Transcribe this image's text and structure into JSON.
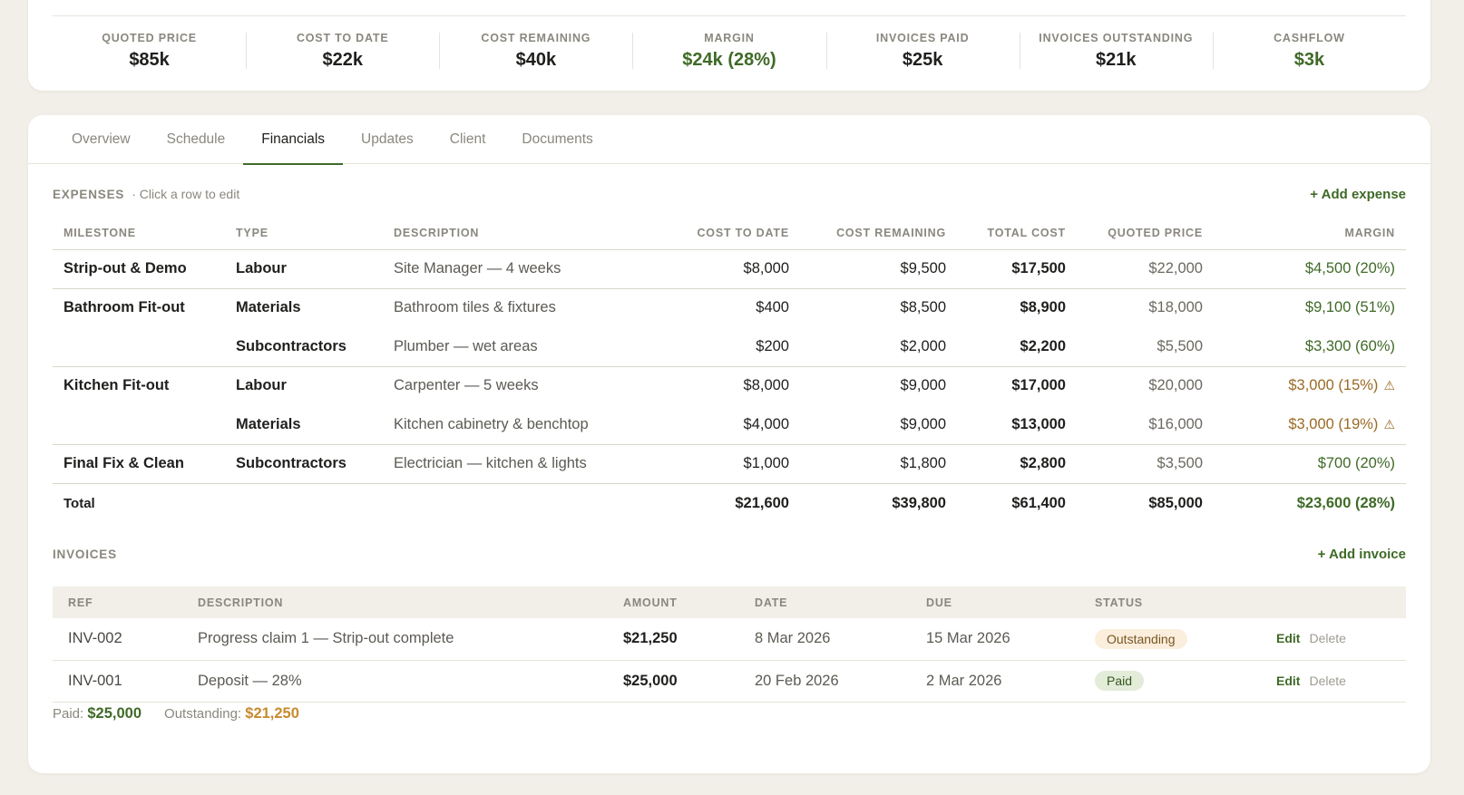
{
  "stats": [
    {
      "label": "QUOTED PRICE",
      "value": "$85k",
      "tone": "default"
    },
    {
      "label": "COST TO DATE",
      "value": "$22k",
      "tone": "default"
    },
    {
      "label": "COST REMAINING",
      "value": "$40k",
      "tone": "default"
    },
    {
      "label": "MARGIN",
      "value": "$24k (28%)",
      "tone": "green"
    },
    {
      "label": "INVOICES PAID",
      "value": "$25k",
      "tone": "default"
    },
    {
      "label": "INVOICES OUTSTANDING",
      "value": "$21k",
      "tone": "default"
    },
    {
      "label": "CASHFLOW",
      "value": "$3k",
      "tone": "green"
    }
  ],
  "tabs": [
    {
      "label": "Overview"
    },
    {
      "label": "Schedule"
    },
    {
      "label": "Financials",
      "active": true
    },
    {
      "label": "Updates"
    },
    {
      "label": "Client"
    },
    {
      "label": "Documents"
    }
  ],
  "expenses": {
    "title": "EXPENSES",
    "hint": "· Click a row to edit",
    "add_label": "+ Add expense",
    "columns": {
      "milestone": "MILESTONE",
      "type": "TYPE",
      "description": "DESCRIPTION",
      "cost_to_date": "COST TO DATE",
      "cost_remaining": "COST REMAINING",
      "total_cost": "TOTAL COST",
      "quoted_price": "QUOTED PRICE",
      "margin": "MARGIN"
    },
    "rows": [
      {
        "milestone": "Strip-out & Demo",
        "type": "Labour",
        "description": "Site Manager — 4 weeks",
        "cost_to_date": "$8,000",
        "cost_remaining": "$9,500",
        "total_cost": "$17,500",
        "quoted_price": "$22,000",
        "margin": "$4,500 (20%)",
        "warning": false
      },
      {
        "milestone": "Bathroom Fit-out",
        "type": "Materials",
        "description": "Bathroom tiles & fixtures",
        "cost_to_date": "$400",
        "cost_remaining": "$8,500",
        "total_cost": "$8,900",
        "quoted_price": "$18,000",
        "margin": "$9,100 (51%)",
        "warning": false
      },
      {
        "milestone": "",
        "type": "Subcontractors",
        "description": "Plumber — wet areas",
        "cost_to_date": "$200",
        "cost_remaining": "$2,000",
        "total_cost": "$2,200",
        "quoted_price": "$5,500",
        "margin": "$3,300 (60%)",
        "warning": false
      },
      {
        "milestone": "Kitchen Fit-out",
        "type": "Labour",
        "description": "Carpenter — 5 weeks",
        "cost_to_date": "$8,000",
        "cost_remaining": "$9,000",
        "total_cost": "$17,000",
        "quoted_price": "$20,000",
        "margin": "$3,000 (15%)",
        "warning": true
      },
      {
        "milestone": "",
        "type": "Materials",
        "description": "Kitchen cabinetry & benchtop",
        "cost_to_date": "$4,000",
        "cost_remaining": "$9,000",
        "total_cost": "$13,000",
        "quoted_price": "$16,000",
        "margin": "$3,000 (19%)",
        "warning": true
      },
      {
        "milestone": "Final Fix & Clean",
        "type": "Subcontractors",
        "description": "Electrician — kitchen & lights",
        "cost_to_date": "$1,000",
        "cost_remaining": "$1,800",
        "total_cost": "$2,800",
        "quoted_price": "$3,500",
        "margin": "$700 (20%)",
        "warning": false
      }
    ],
    "total": {
      "label": "Total",
      "cost_to_date": "$21,600",
      "cost_remaining": "$39,800",
      "total_cost": "$61,400",
      "quoted_price": "$85,000",
      "margin": "$23,600 (28%)"
    },
    "warning_glyph": "⚠"
  },
  "invoices": {
    "title": "INVOICES",
    "add_label": "+ Add invoice",
    "columns": {
      "ref": "REF",
      "description": "DESCRIPTION",
      "amount": "AMOUNT",
      "date": "DATE",
      "due": "DUE",
      "status": "STATUS"
    },
    "rows": [
      {
        "ref": "INV-002",
        "description": "Progress claim 1 — Strip-out complete",
        "amount": "$21,250",
        "date": "8 Mar 2026",
        "due": "15 Mar 2026",
        "status": "Outstanding",
        "status_key": "outstanding"
      },
      {
        "ref": "INV-001",
        "description": "Deposit — 28%",
        "amount": "$25,000",
        "date": "20 Feb 2026",
        "due": "2 Mar 2026",
        "status": "Paid",
        "status_key": "paid"
      }
    ],
    "edit_label": "Edit",
    "delete_label": "Delete"
  },
  "footer": {
    "paid_label": "Paid:",
    "paid_value": "$25,000",
    "outstanding_label": "Outstanding:",
    "outstanding_value": "$21,250"
  },
  "colors": {
    "accent": "#3f6a27",
    "warning": "#9a6a24",
    "outstanding": "#c88a2e",
    "background": "#f1efe8"
  }
}
